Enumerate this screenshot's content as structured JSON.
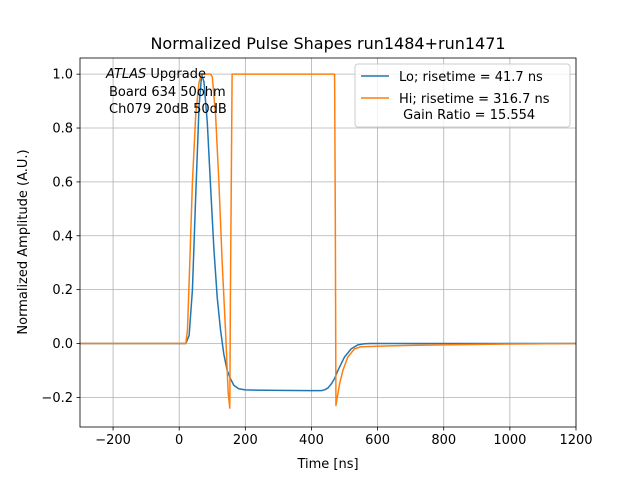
{
  "chart_data": {
    "type": "line",
    "title": "Normalized Pulse Shapes run1484+run1471",
    "xlabel": "Time [ns]",
    "ylabel": "Normalized Amplitude (A.U.)",
    "xlim": [
      -300,
      1200
    ],
    "ylim": [
      -0.31,
      1.06
    ],
    "xticks": [
      -200,
      0,
      200,
      400,
      600,
      800,
      1000,
      1200
    ],
    "xtick_labels": [
      "−200",
      "0",
      "200",
      "400",
      "600",
      "800",
      "1000",
      "1200"
    ],
    "yticks": [
      -0.2,
      0.0,
      0.2,
      0.4,
      0.6,
      0.8,
      1.0
    ],
    "ytick_labels": [
      "−0.2",
      "0.0",
      "0.2",
      "0.4",
      "0.6",
      "0.8",
      "1.0"
    ],
    "grid": true,
    "legend_position": "top-right",
    "annotation": {
      "italic": "ATLAS",
      "line1_rest": " Upgrade",
      "line2": "Board 634 50ohm",
      "line3": "Ch079 20dB 50dB"
    },
    "series": [
      {
        "name": "Lo; risetime = 41.7 ns",
        "color": "#1f77b4",
        "x": [
          -300,
          20,
          30,
          40,
          50,
          60,
          68,
          75,
          85,
          95,
          105,
          115,
          125,
          135,
          145,
          155,
          165,
          180,
          200,
          230,
          300,
          400,
          430,
          440,
          450,
          460,
          470,
          480,
          500,
          520,
          540,
          560,
          580,
          600,
          700,
          800,
          1000,
          1200
        ],
        "y": [
          0.0,
          0.0,
          0.03,
          0.2,
          0.55,
          0.88,
          1.0,
          0.97,
          0.82,
          0.58,
          0.35,
          0.17,
          0.05,
          -0.04,
          -0.1,
          -0.13,
          -0.155,
          -0.168,
          -0.172,
          -0.173,
          -0.174,
          -0.175,
          -0.175,
          -0.172,
          -0.165,
          -0.15,
          -0.13,
          -0.1,
          -0.05,
          -0.02,
          -0.005,
          -0.001,
          0.0,
          0.0,
          0.0,
          0.0,
          0.0,
          0.0
        ]
      },
      {
        "name": "Hi; risetime = 316.7 ns\n Gain Ratio = 15.554",
        "color": "#ff7f0e",
        "x": [
          -300,
          20,
          25,
          32,
          40,
          50,
          60,
          68,
          80,
          95,
          100,
          110,
          120,
          130,
          140,
          148,
          153,
          155,
          160,
          230,
          300,
          400,
          470,
          472,
          474,
          478,
          485,
          495,
          510,
          530,
          550,
          600,
          700,
          800,
          1000,
          1200
        ],
        "y": [
          0.0,
          0.0,
          0.05,
          0.3,
          0.6,
          0.85,
          0.97,
          1.0,
          1.0,
          1.0,
          0.99,
          0.85,
          0.6,
          0.3,
          0.05,
          -0.18,
          -0.24,
          0.2,
          1.0,
          1.0,
          1.0,
          1.0,
          1.0,
          0.5,
          -0.23,
          -0.2,
          -0.15,
          -0.1,
          -0.05,
          -0.02,
          -0.012,
          -0.01,
          -0.007,
          -0.005,
          -0.002,
          0.0
        ]
      }
    ]
  }
}
